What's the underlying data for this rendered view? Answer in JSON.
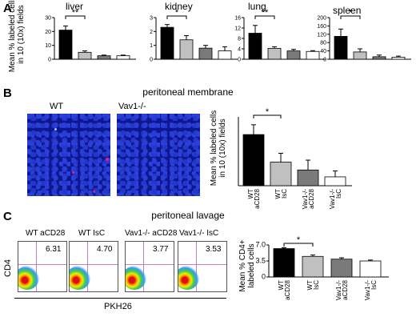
{
  "panels": {
    "A": "A",
    "B": "B",
    "C": "C"
  },
  "panelA": {
    "ylabel_line1": "Mean % labeled cells",
    "ylabel_line2": "in 10 (10x) fields",
    "charts": [
      {
        "title": "liver",
        "sig": "**",
        "ticks": [
          "30",
          "20",
          "10",
          "0"
        ]
      },
      {
        "title": "kidney",
        "sig": "*",
        "ticks": [
          "3",
          "2",
          "1",
          "0"
        ]
      },
      {
        "title": "lung",
        "sig": "**",
        "ticks": [
          "16",
          "12",
          "8",
          "4",
          "0"
        ]
      },
      {
        "title": "spleen",
        "sig": "*",
        "ticks": [
          "200",
          "160",
          "120",
          "80",
          "40",
          "0"
        ]
      }
    ]
  },
  "panelB": {
    "title": "peritoneal membrane",
    "micro_labels": [
      "WT",
      "Vav1-/-"
    ],
    "ylabel_line1": "Mean % labeled cells",
    "ylabel_line2": "in 10 (10x) fields",
    "sig": "*",
    "xlabels": [
      "WT aCD28",
      "WT IsC",
      "Vav1-/- aCD28",
      "Vav1-/- IsC"
    ]
  },
  "panelC": {
    "title": "peritoneal lavage",
    "plots": [
      {
        "label": "WT aCD28",
        "value": "6.31"
      },
      {
        "label": "WT IsC",
        "value": "4.70"
      },
      {
        "label": "Vav1-/- aCD28",
        "value": "3.77"
      },
      {
        "label": "Vav1-/- IsC",
        "value": "3.53"
      }
    ],
    "y_axis": "CD4",
    "x_axis": "PKH26",
    "ylabel_line1": "Mean % CD4+",
    "ylabel_line2": "labeled cells",
    "ticks": [
      "7.0",
      "3.5",
      "0"
    ],
    "sig": "*",
    "xlabels": [
      "WT aCD28",
      "WT IsC",
      "Vav1-/- aCD28",
      "Vav1-/- IsC"
    ]
  },
  "colors": {
    "bar1": "#000000",
    "bar2": "#c0c0c0",
    "bar3": "#7a7a7a",
    "bar4": "#ffffff"
  },
  "chart_data": [
    {
      "type": "bar",
      "title": "liver",
      "categories": [
        "WT aCD28",
        "WT IsC",
        "Vav1-/- aCD28",
        "Vav1-/- IsC"
      ],
      "values": [
        21,
        5,
        2.5,
        2.5
      ],
      "errors": [
        3,
        1,
        0.5,
        0.5
      ],
      "ylim": [
        0,
        30
      ]
    },
    {
      "type": "bar",
      "title": "kidney",
      "categories": [
        "WT aCD28",
        "WT IsC",
        "Vav1-/- aCD28",
        "Vav1-/- IsC"
      ],
      "values": [
        2.3,
        1.4,
        0.8,
        0.6
      ],
      "errors": [
        0.2,
        0.3,
        0.2,
        0.3
      ],
      "ylim": [
        0,
        3
      ]
    },
    {
      "type": "bar",
      "title": "lung",
      "categories": [
        "WT aCD28",
        "WT IsC",
        "Vav1-/- aCD28",
        "Vav1-/- IsC"
      ],
      "values": [
        10,
        4.2,
        3.2,
        3.0
      ],
      "errors": [
        3,
        0.6,
        0.6,
        0.3
      ],
      "ylim": [
        0,
        16
      ]
    },
    {
      "type": "bar",
      "title": "spleen",
      "categories": [
        "WT aCD28",
        "WT IsC",
        "Vav1-/- aCD28",
        "Vav1-/- IsC"
      ],
      "values": [
        110,
        35,
        12,
        10
      ],
      "errors": [
        35,
        15,
        8,
        5
      ],
      "ylim": [
        0,
        200
      ]
    },
    {
      "type": "bar",
      "title": "",
      "categories": [
        "WT aCD28",
        "WT IsC",
        "Vav1-/- aCD28",
        "Vav1-/- IsC"
      ],
      "values": [
        5.2,
        2.4,
        1.6,
        0.9
      ],
      "errors": [
        1.0,
        0.9,
        1.0,
        0.6
      ],
      "ylim": [
        0,
        7
      ]
    },
    {
      "type": "bar",
      "title": "",
      "categories": [
        "WT aCD28",
        "WT IsC",
        "Vav1-/- aCD28",
        "Vav1-/- IsC"
      ],
      "values": [
        6.2,
        4.5,
        3.9,
        3.5
      ],
      "errors": [
        0.2,
        0.3,
        0.3,
        0.2
      ],
      "ylim": [
        0,
        7.0
      ]
    }
  ]
}
